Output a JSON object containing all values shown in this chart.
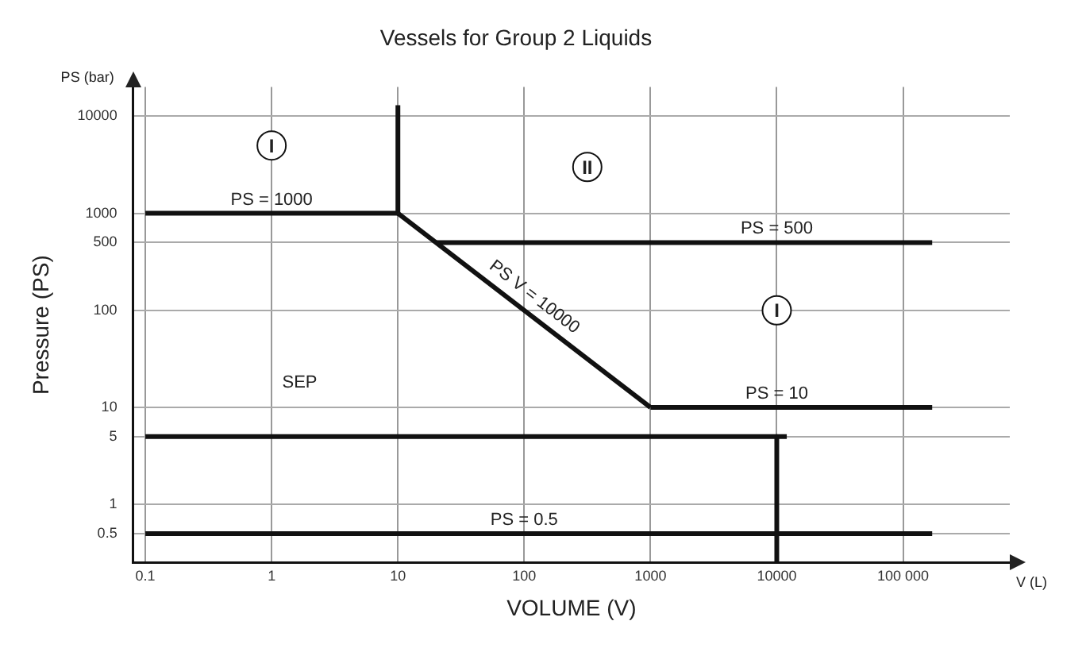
{
  "chart_data": {
    "type": "line",
    "title": "Vessels for Group 2 Liquids",
    "xlabel": "VOLUME (V)",
    "ylabel": "Pressure (PS)",
    "log": "xy",
    "grid": true,
    "marker": "none",
    "line_style": "solid",
    "xlim": [
      0.08,
      700000
    ],
    "ylim": [
      0.25,
      20000
    ],
    "xticks": [
      0.1,
      1,
      10,
      100,
      1000,
      10000,
      {
        "value": 100000,
        "label": "100 000"
      }
    ],
    "yticks": [
      0.5,
      1,
      5,
      10,
      100,
      500,
      1000,
      10000
    ],
    "series": [
      {
        "color": "#111111",
        "x": [
          0.1,
          10
        ],
        "values": [
          1000,
          1000
        ]
      },
      {
        "color": "#111111",
        "x": [
          10,
          10
        ],
        "values": [
          1000,
          13000
        ]
      },
      {
        "color": "#111111",
        "x": [
          10,
          1000
        ],
        "values": [
          1000,
          10
        ]
      },
      {
        "color": "#111111",
        "x": [
          20,
          170000
        ],
        "values": [
          500,
          500
        ]
      },
      {
        "color": "#111111",
        "x": [
          1000,
          170000
        ],
        "values": [
          10,
          10
        ]
      },
      {
        "color": "#111111",
        "x": [
          0.1,
          12000
        ],
        "values": [
          5,
          5
        ]
      },
      {
        "color": "#111111",
        "x": [
          10000,
          10000
        ],
        "values": [
          5,
          0.25
        ]
      },
      {
        "color": "#111111",
        "x": [
          0.1,
          170000
        ],
        "values": [
          0.5,
          0.5
        ]
      }
    ],
    "annotations": [
      "PS (bar)",
      "V (L)",
      {
        "text": "PS = 1000",
        "x": 1,
        "y": 1000
      },
      {
        "text": "PS = 500",
        "x": 10000,
        "y": 500
      },
      {
        "text": "PS = 10",
        "x": 10000,
        "y": 10
      },
      {
        "text": "PS = 0.5",
        "x": 100,
        "y": 0.5
      },
      {
        "text": "PS V = 10000",
        "x": 100,
        "y": 100
      },
      "SEP",
      {
        "text": "I",
        "x": 1,
        "y": 5000
      },
      {
        "text": "II",
        "x": 316,
        "y": 3000
      },
      {
        "text": "I",
        "x": 10000,
        "y": 100
      }
    ]
  }
}
